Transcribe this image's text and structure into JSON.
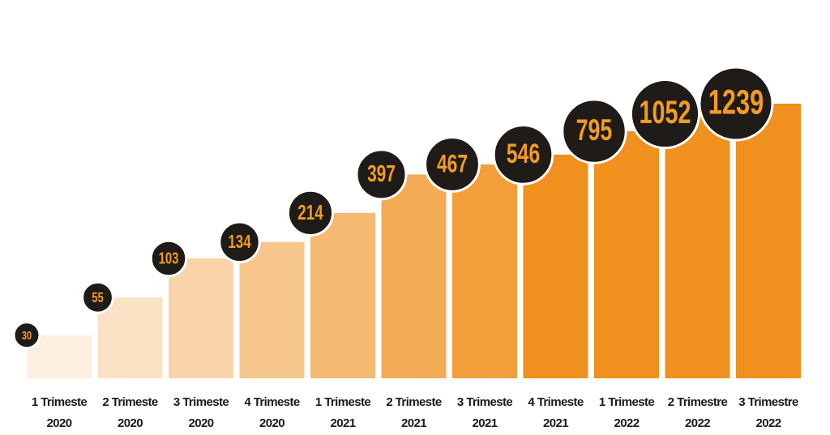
{
  "chart_data": {
    "type": "bar",
    "categories": [
      [
        "1 Trimeste",
        "2020"
      ],
      [
        "2 Trimeste",
        "2020"
      ],
      [
        "3 Trimeste",
        "2020"
      ],
      [
        "4 Trimeste",
        "2020"
      ],
      [
        "1 Trimeste",
        "2021"
      ],
      [
        "2 Trimeste",
        "2021"
      ],
      [
        "3 Trimeste",
        "2021"
      ],
      [
        "4 Trimeste",
        "2021"
      ],
      [
        "1 Trimeste",
        "2022"
      ],
      [
        "2 Trimestre",
        "2022"
      ],
      [
        "3 Trimestre",
        "2022"
      ]
    ],
    "values": [
      30,
      55,
      103,
      134,
      214,
      397,
      467,
      546,
      795,
      1052,
      1239
    ],
    "color_range": [
      "#fcefe0",
      "#f0901e"
    ],
    "label_color": "#f39c1f",
    "badge_color": "#1e1b18",
    "log_scale": true,
    "ylim": [
      15,
      1239
    ]
  }
}
